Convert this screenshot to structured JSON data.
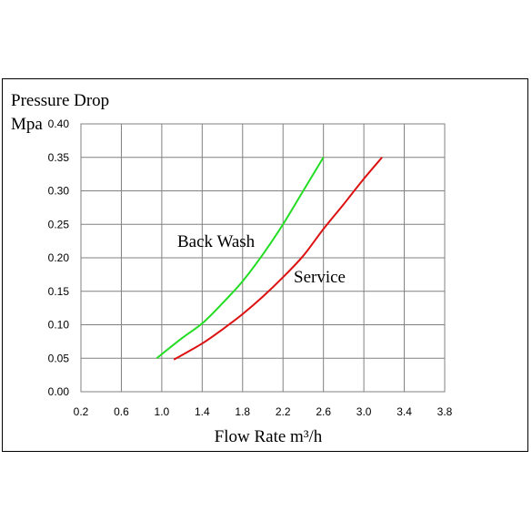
{
  "chart_data": {
    "type": "line",
    "title": "",
    "ylabel_line1": "Pressure Drop",
    "ylabel_line2": "Mpa",
    "xlabel": "Flow Rate m³/h",
    "xlim": [
      0.2,
      3.8
    ],
    "ylim": [
      0.0,
      0.4
    ],
    "x_ticks": [
      "0.2",
      "0.6",
      "1.0",
      "1.4",
      "1.8",
      "2.2",
      "2.6",
      "3.0",
      "3.4",
      "3.8"
    ],
    "y_ticks": [
      "0.00",
      "0.05",
      "0.10",
      "0.15",
      "0.20",
      "0.25",
      "0.30",
      "0.35",
      "0.40"
    ],
    "grid": true,
    "series": [
      {
        "name": "Back Wash",
        "color": "#22dd22",
        "x": [
          0.95,
          1.2,
          1.4,
          1.6,
          1.8,
          2.0,
          2.2,
          2.4,
          2.6
        ],
        "y": [
          0.05,
          0.08,
          0.102,
          0.132,
          0.165,
          0.205,
          0.25,
          0.3,
          0.35
        ]
      },
      {
        "name": "Service",
        "color": "#dd1111",
        "x": [
          1.12,
          1.4,
          1.6,
          1.8,
          2.0,
          2.2,
          2.4,
          2.6,
          2.8,
          3.0,
          3.18
        ],
        "y": [
          0.048,
          0.072,
          0.093,
          0.116,
          0.142,
          0.171,
          0.203,
          0.243,
          0.28,
          0.318,
          0.35
        ]
      }
    ]
  }
}
